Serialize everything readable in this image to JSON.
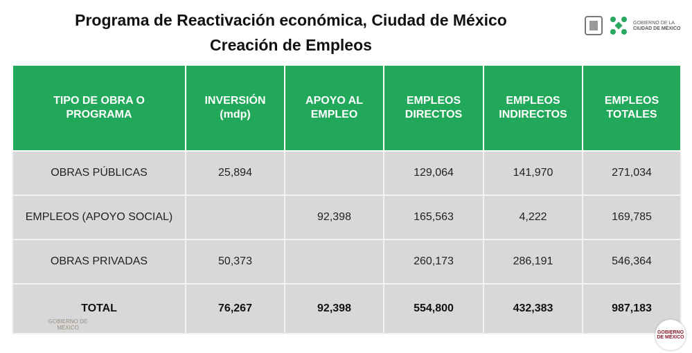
{
  "header": {
    "title": "Programa de Reactivación económica, Ciudad de México",
    "subtitle": "Creación de Empleos",
    "logo_text": [
      "GOBIERNO DE LA",
      "CIUDAD DE MÉXICO"
    ]
  },
  "table": {
    "columns": [
      "TIPO DE OBRA O PROGRAMA",
      "INVERSIÓN (mdp)",
      "APOYO AL EMPLEO",
      "EMPLEOS DIRECTOS",
      "EMPLEOS INDIRECTOS",
      "EMPLEOS TOTALES"
    ],
    "rows": [
      [
        "OBRAS PÚBLICAS",
        "25,894",
        null,
        "129,064",
        "141,970",
        "271,034"
      ],
      [
        "EMPLEOS (APOYO SOCIAL)",
        null,
        "92,398",
        "165,563",
        "4,222",
        "169,785"
      ],
      [
        "OBRAS PRIVADAS",
        "50,373",
        null,
        "260,173",
        "286,191",
        "546,364"
      ],
      [
        "TOTAL",
        "76,267",
        "92,398",
        "554,800",
        "432,383",
        "987,183"
      ]
    ]
  },
  "footer": {
    "left_watermark": "GOBIERNO DE MÉXICO",
    "right_badge": "GOBIERNO DE MÉXICO"
  }
}
